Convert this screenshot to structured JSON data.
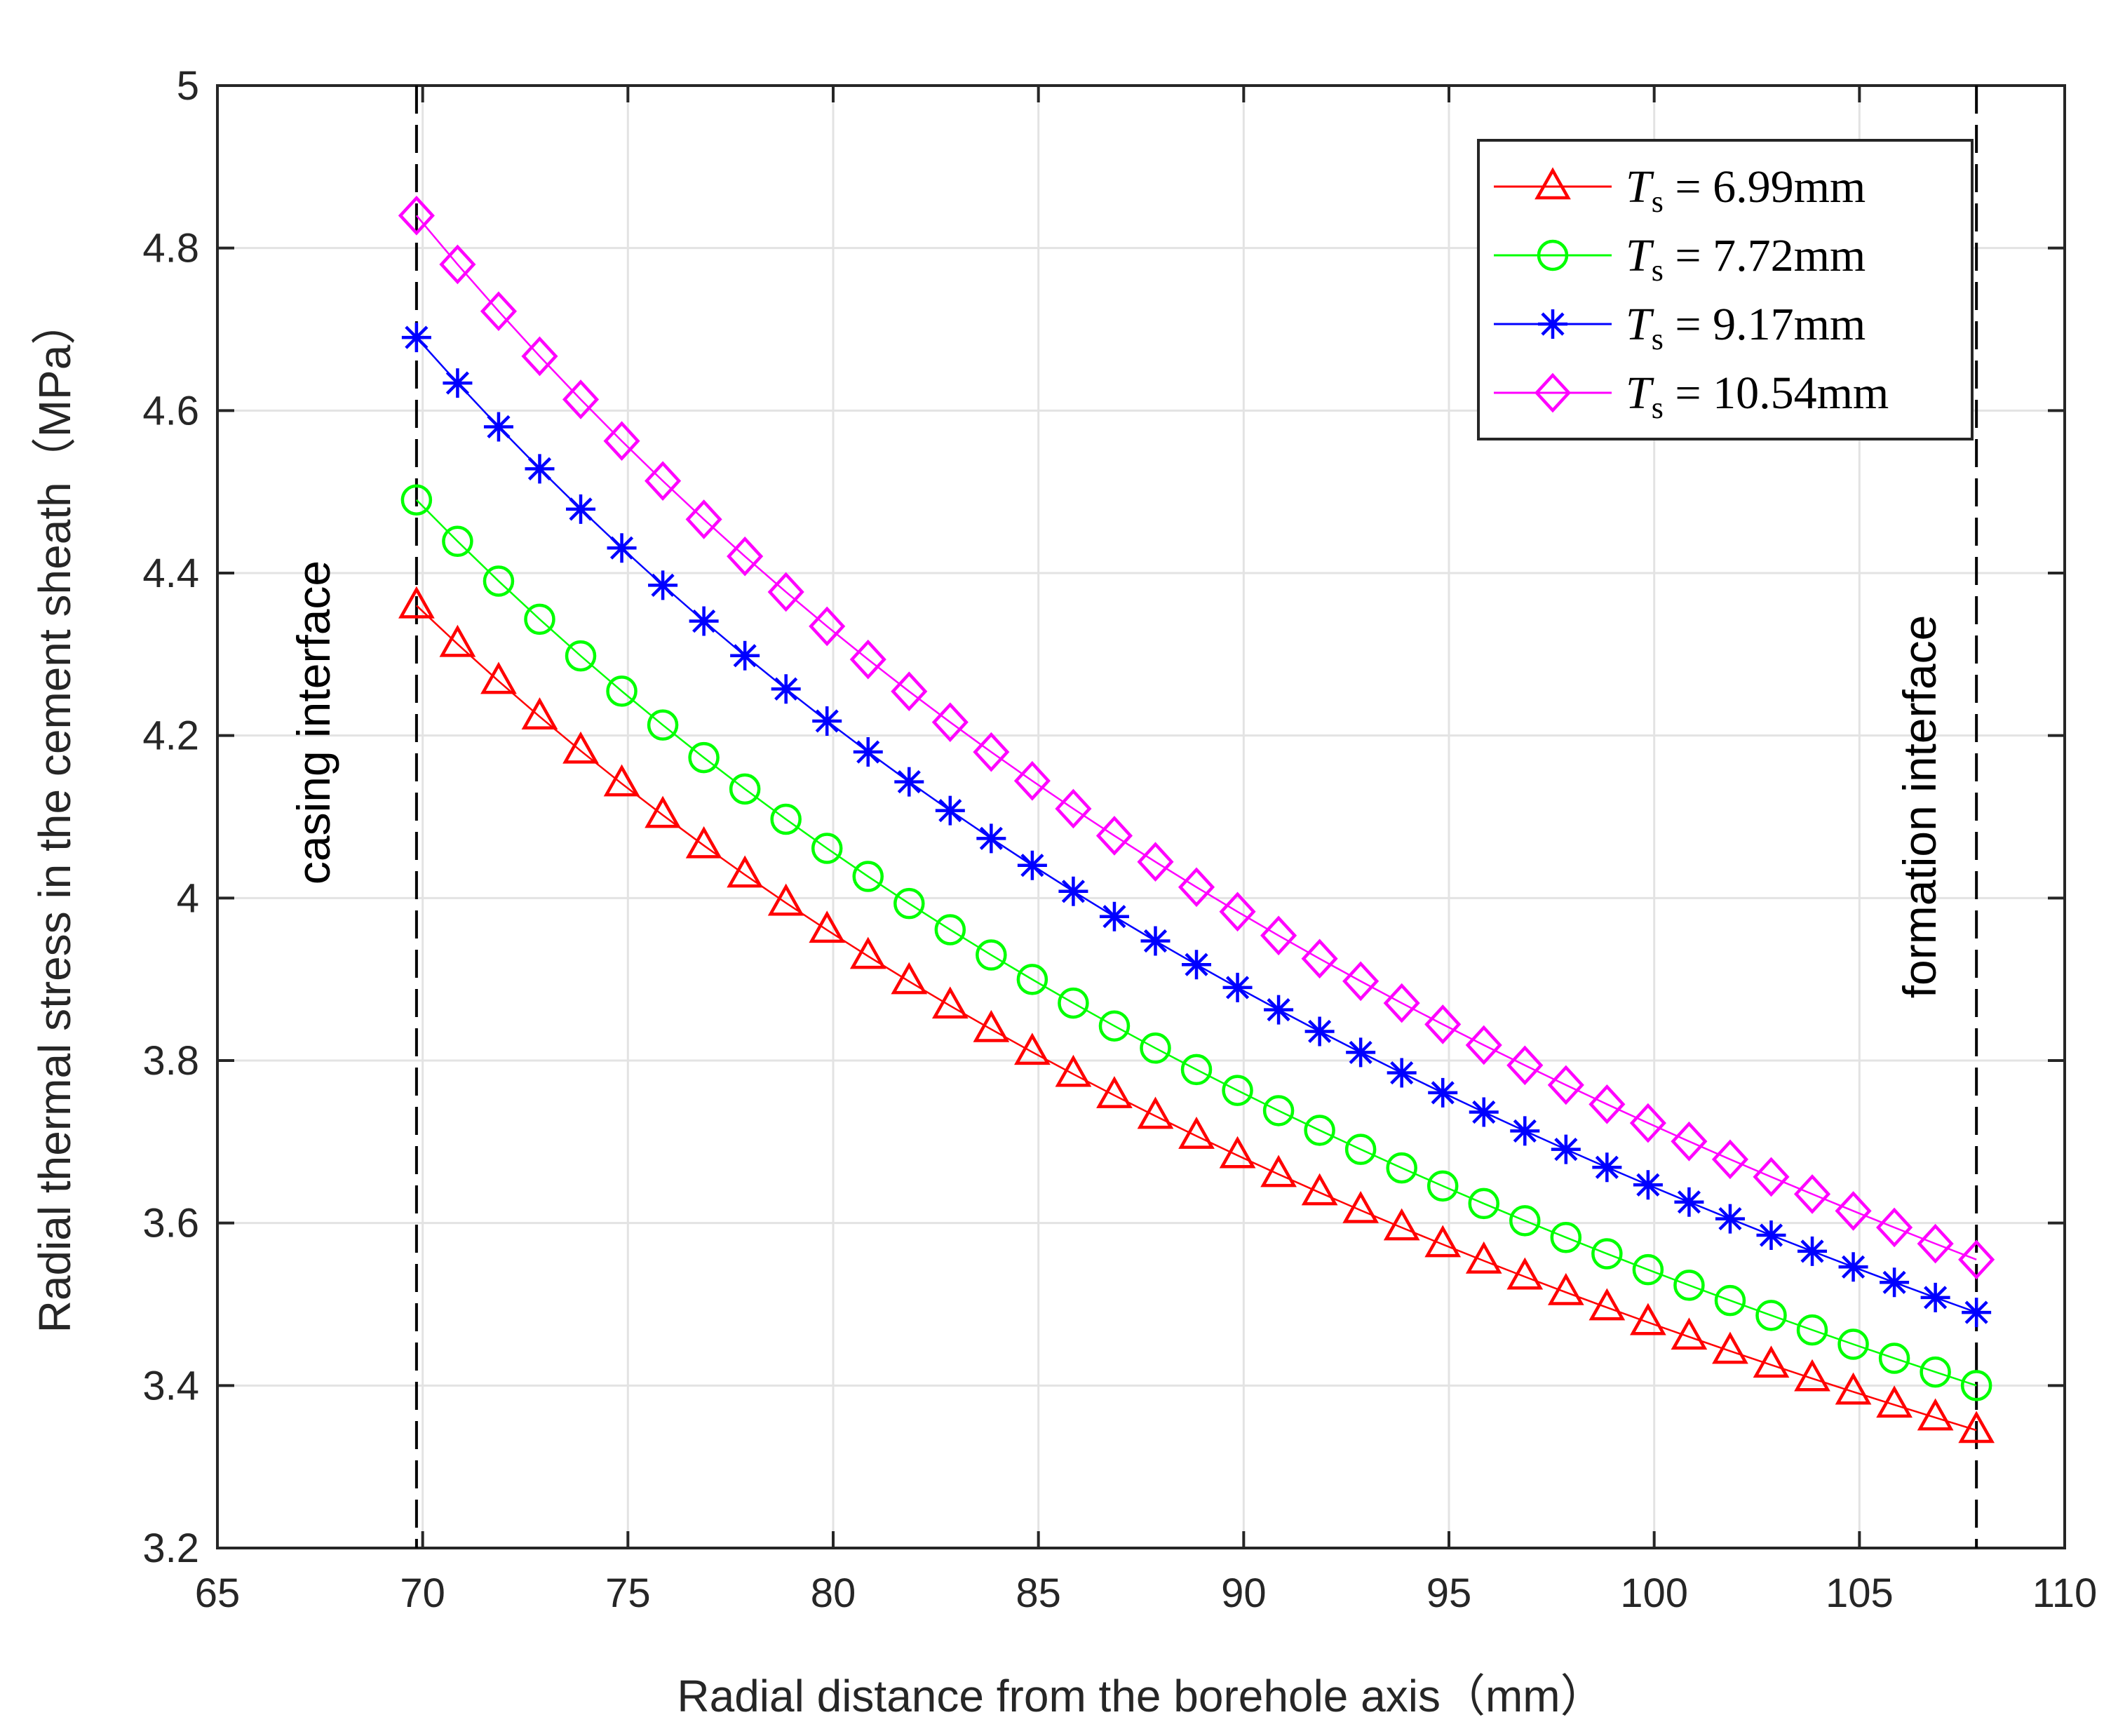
{
  "chart_data": {
    "type": "line",
    "xlabel": "Radial distance from the borehole axis（mm）",
    "ylabel": "Radial thermal stress in the cement sheath（MPa）",
    "xlim": [
      65,
      110
    ],
    "ylim": [
      3.2,
      5
    ],
    "xticks": [
      65,
      70,
      75,
      80,
      85,
      90,
      95,
      100,
      105,
      110
    ],
    "yticks": [
      3.2,
      3.4,
      3.6,
      3.8,
      4,
      4.2,
      4.4,
      4.6,
      4.8,
      5
    ],
    "xtick_labels": [
      "65",
      "70",
      "75",
      "80",
      "85",
      "90",
      "95",
      "100",
      "105",
      "110"
    ],
    "ytick_labels": [
      "3.2",
      "3.4",
      "3.6",
      "3.8",
      "4",
      "4.2",
      "4.4",
      "4.6",
      "4.8",
      "5"
    ],
    "grid": true,
    "legend_position": "top-right",
    "x": [
      69.85,
      70.85,
      71.85,
      72.85,
      73.85,
      74.85,
      75.85,
      76.85,
      77.85,
      78.85,
      79.85,
      80.85,
      81.85,
      82.85,
      83.85,
      84.85,
      85.85,
      86.85,
      87.85,
      88.85,
      89.85,
      90.85,
      91.85,
      92.85,
      93.85,
      94.85,
      95.85,
      96.85,
      97.85,
      98.85,
      99.85,
      100.85,
      101.85,
      102.85,
      103.85,
      104.85,
      105.85,
      106.85,
      107.85
    ],
    "series": [
      {
        "name": "6.99mm",
        "marker": "triangle",
        "color": "#ff0000",
        "start": 4.36,
        "end": 3.345
      },
      {
        "name": "7.72mm",
        "marker": "circle",
        "color": "#00ff00",
        "start": 4.49,
        "end": 3.4
      },
      {
        "name": "9.17mm",
        "marker": "asterisk",
        "color": "#0000ff",
        "start": 4.69,
        "end": 3.49
      },
      {
        "name": "10.54mm",
        "marker": "diamond",
        "color": "#ff00ff",
        "start": 4.84,
        "end": 3.555
      }
    ],
    "legend_symbol": "T",
    "legend_subscript": "s",
    "legend_eq": "=",
    "annotations": [
      {
        "text": "casing  interface",
        "x": 69.85
      },
      {
        "text": "formation  interface",
        "x": 107.85
      }
    ]
  }
}
